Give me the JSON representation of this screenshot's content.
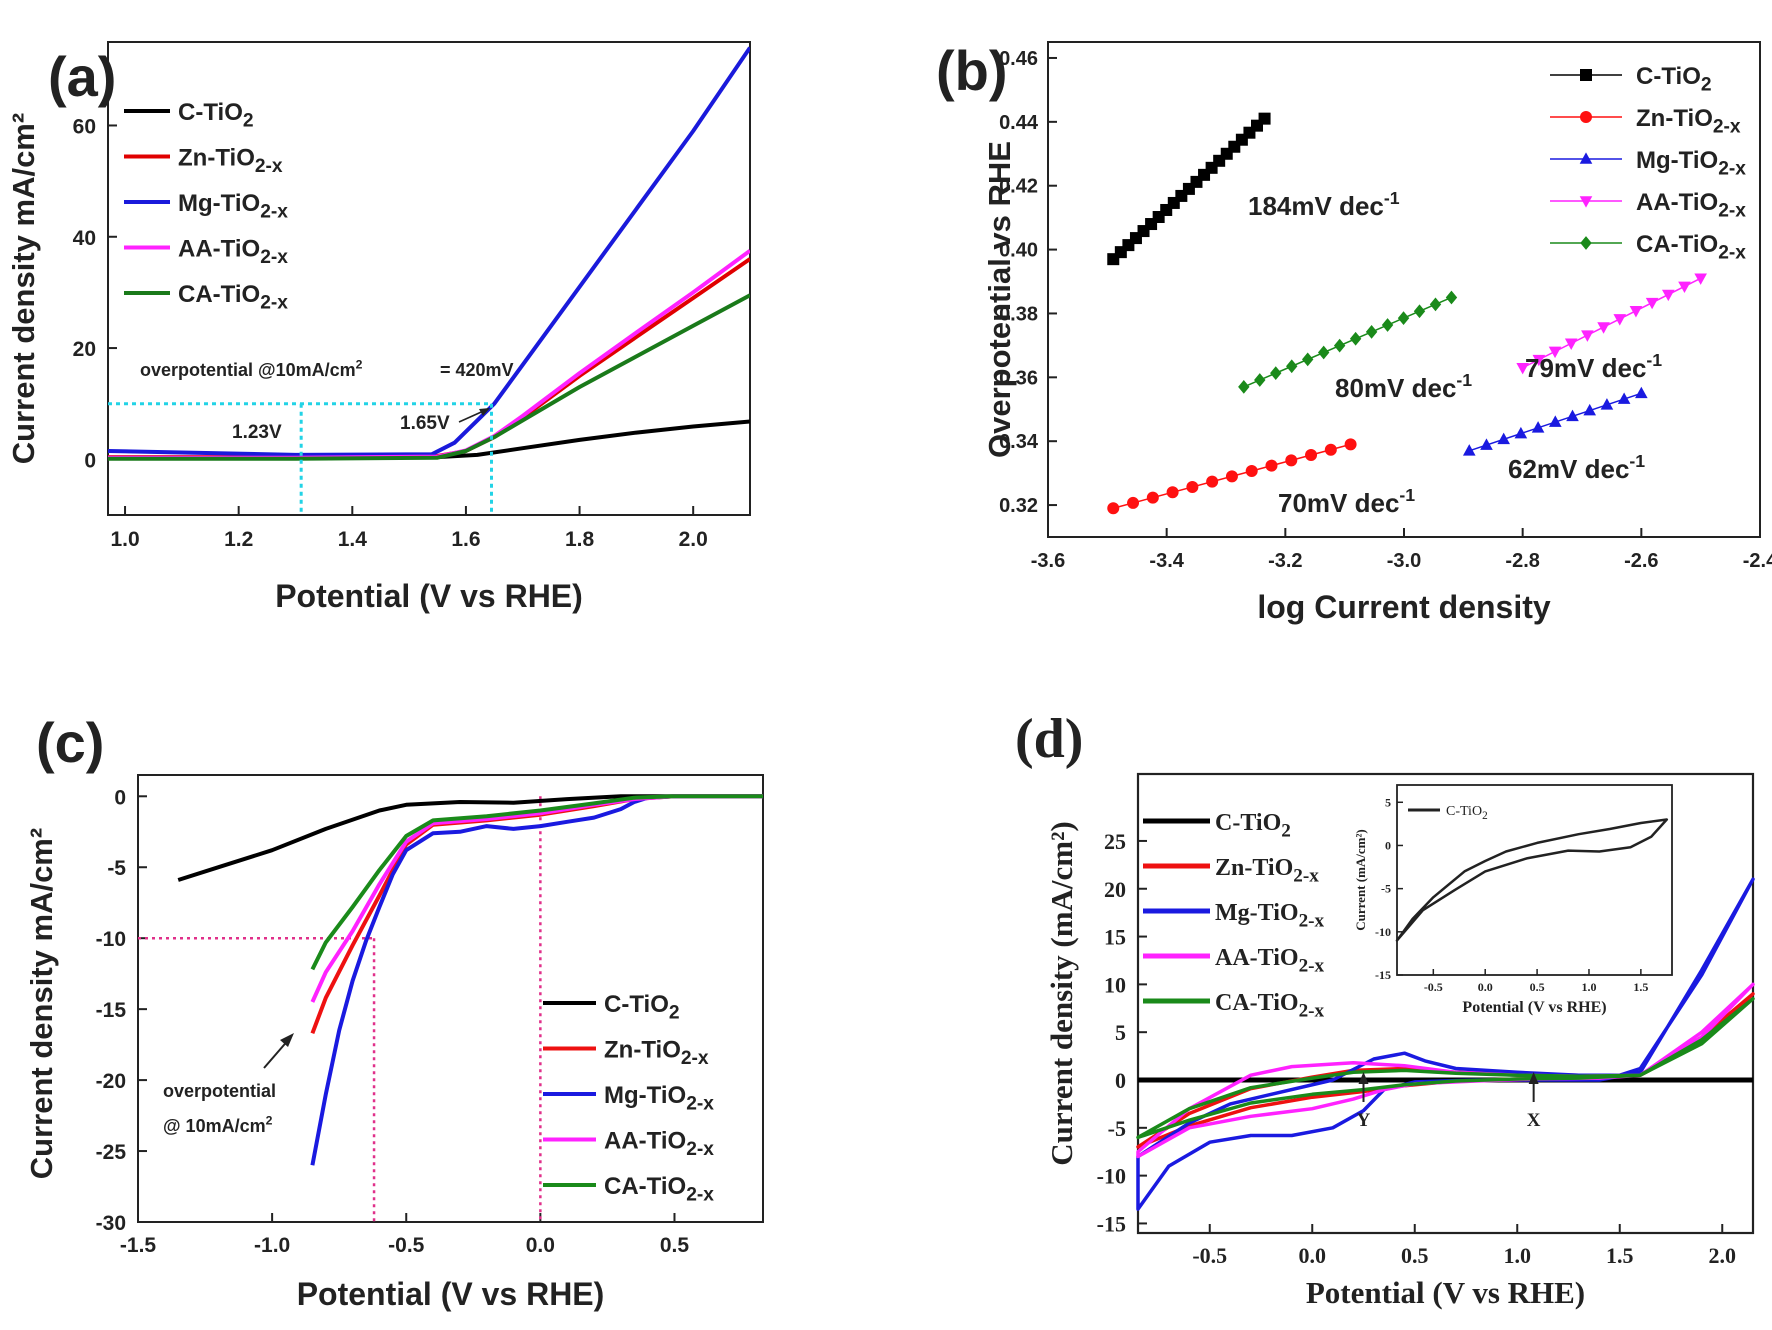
{
  "chart_data": [
    {
      "panel": "(a)",
      "type": "line",
      "xlabel": "Potential (V vs RHE)",
      "ylabel": "Current density mA/cm²",
      "xlim": [
        0.97,
        2.1
      ],
      "ylim": [
        -10,
        75
      ],
      "xticks": [
        "1.0",
        "1.2",
        "1.4",
        "1.6",
        "1.8",
        "2.0"
      ],
      "yticks": [
        "0",
        "20",
        "40",
        "60"
      ],
      "legend_position": "top-left",
      "series": [
        {
          "name": "C-TiO",
          "sub": "2",
          "color": "#000000",
          "x": [
            0.97,
            1.3,
            1.55,
            1.62,
            1.7,
            1.8,
            1.9,
            2.0,
            2.1
          ],
          "y": [
            0.2,
            0.3,
            0.4,
            0.8,
            2.0,
            3.5,
            4.8,
            5.9,
            6.8
          ]
        },
        {
          "name": "Zn-TiO",
          "sub": "2-x",
          "color": "#e00000",
          "x": [
            0.97,
            1.3,
            1.55,
            1.6,
            1.65,
            1.7,
            1.8,
            1.9,
            2.0,
            2.1
          ],
          "y": [
            0.4,
            0.4,
            0.6,
            1.5,
            4.0,
            7.5,
            15.0,
            22.0,
            29.0,
            36.0
          ]
        },
        {
          "name": "Mg-TiO",
          "sub": "2-x",
          "color": "#1a1adb",
          "x": [
            0.97,
            1.3,
            1.54,
            1.58,
            1.62,
            1.65,
            1.7,
            1.8,
            1.9,
            2.0,
            2.1
          ],
          "y": [
            1.5,
            0.8,
            0.9,
            3.0,
            7.0,
            10.0,
            17.0,
            31.0,
            45.0,
            59.0,
            74.0
          ]
        },
        {
          "name": "AA-TiO",
          "sub": "2-x",
          "color": "#ff22ff",
          "x": [
            0.97,
            1.3,
            1.55,
            1.6,
            1.65,
            1.7,
            1.8,
            1.9,
            2.0,
            2.1
          ],
          "y": [
            0.3,
            0.3,
            0.5,
            1.6,
            4.2,
            7.8,
            15.5,
            22.8,
            30.0,
            37.5
          ]
        },
        {
          "name": "CA-TiO",
          "sub": "2-x",
          "color": "#1a7a1a",
          "x": [
            0.97,
            1.3,
            1.55,
            1.6,
            1.65,
            1.7,
            1.8,
            1.9,
            2.0,
            2.1
          ],
          "y": [
            0.1,
            0.1,
            0.3,
            1.5,
            4.0,
            7.0,
            13.0,
            18.5,
            24.0,
            29.5
          ]
        }
      ],
      "annotations": {
        "overpotential": "overpotential @10mA/cm",
        "overpotential_sup": "2",
        "overpotential_value": "= 420mV",
        "v1": "1.23V",
        "v2": "1.65V",
        "ref_y": 10,
        "ref_x1": 1.31,
        "ref_x2": 1.645
      }
    },
    {
      "panel": "(b)",
      "type": "scatter",
      "xlabel": "log Current density",
      "ylabel": "Overpotential vs RHE",
      "xlim": [
        -3.6,
        -2.4
      ],
      "ylim": [
        0.31,
        0.465
      ],
      "xticks": [
        "-3.6",
        "-3.4",
        "-3.2",
        "-3.0",
        "-2.8",
        "-2.6",
        "-2.4"
      ],
      "yticks": [
        "0.32",
        "0.34",
        "0.36",
        "0.38",
        "0.40",
        "0.42",
        "0.44",
        "0.46"
      ],
      "legend_position": "top-right",
      "series": [
        {
          "name": "C-TiO",
          "sub": "2",
          "color": "#000000",
          "marker": "square",
          "x_start": -3.49,
          "x_end": -3.235,
          "y_start": 0.397,
          "y_end": 0.441,
          "count": 21,
          "label": "184mV dec",
          "label_sup": "-1"
        },
        {
          "name": "Zn-TiO",
          "sub": "2-x",
          "color": "#ff1111",
          "marker": "circle",
          "x_start": -3.49,
          "x_end": -3.09,
          "y_start": 0.319,
          "y_end": 0.339,
          "count": 13,
          "label": "70mV dec",
          "label_sup": "-1"
        },
        {
          "name": "Mg-TiO",
          "sub": "2-x",
          "color": "#1a1ae0",
          "marker": "triangle-up",
          "x_start": -2.89,
          "x_end": -2.6,
          "y_start": 0.337,
          "y_end": 0.355,
          "count": 11,
          "label": "62mV dec",
          "label_sup": "-1"
        },
        {
          "name": "AA-TiO",
          "sub": "2-x",
          "color": "#ff22ff",
          "marker": "triangle-down",
          "x_start": -2.8,
          "x_end": -2.5,
          "y_start": 0.363,
          "y_end": 0.391,
          "count": 12,
          "label": "79mV dec",
          "label_sup": "-1"
        },
        {
          "name": "CA-TiO",
          "sub": "2-x",
          "color": "#1a8a1a",
          "marker": "diamond",
          "x_start": -3.27,
          "x_end": -2.92,
          "y_start": 0.357,
          "y_end": 0.385,
          "count": 14,
          "label": "80mV dec",
          "label_sup": "-1"
        }
      ]
    },
    {
      "panel": "(c)",
      "type": "line",
      "xlabel": "Potential (V vs RHE)",
      "ylabel": "Current density mA/cm²",
      "xlim": [
        -1.5,
        0.83
      ],
      "ylim": [
        -30,
        1.5
      ],
      "xticks": [
        "-1.5",
        "-1.0",
        "-0.5",
        "0.0",
        "0.5"
      ],
      "yticks": [
        "0",
        "-5",
        "-10",
        "-15",
        "-20",
        "-25",
        "-30"
      ],
      "legend_position": "bottom-right",
      "series": [
        {
          "name": "C-TiO",
          "sub": "2",
          "color": "#000000",
          "x": [
            -1.35,
            -1.2,
            -1.0,
            -0.8,
            -0.6,
            -0.5,
            -0.4,
            -0.3,
            -0.1,
            0.1,
            0.3,
            0.5,
            0.83
          ],
          "y": [
            -5.9,
            -5.0,
            -3.8,
            -2.3,
            -1.0,
            -0.6,
            -0.5,
            -0.4,
            -0.45,
            -0.2,
            0,
            0,
            0
          ]
        },
        {
          "name": "Zn-TiO",
          "sub": "2-x",
          "color": "#ee1111",
          "x": [
            -0.85,
            -0.8,
            -0.7,
            -0.6,
            -0.5,
            -0.4,
            -0.2,
            0.0,
            0.2,
            0.35,
            0.5,
            0.83
          ],
          "y": [
            -16.7,
            -14.2,
            -10.5,
            -7.0,
            -3.4,
            -2.0,
            -1.7,
            -1.3,
            -0.7,
            -0.2,
            0,
            0
          ]
        },
        {
          "name": "Mg-TiO",
          "sub": "2-x",
          "color": "#1a1ae0",
          "x": [
            -0.85,
            -0.8,
            -0.75,
            -0.7,
            -0.65,
            -0.6,
            -0.55,
            -0.5,
            -0.4,
            -0.3,
            -0.2,
            -0.1,
            0.0,
            0.1,
            0.2,
            0.3,
            0.35,
            0.4,
            0.5,
            0.83
          ],
          "y": [
            -26.0,
            -21.0,
            -16.5,
            -13.0,
            -10.2,
            -7.8,
            -5.5,
            -3.8,
            -2.6,
            -2.5,
            -2.1,
            -2.3,
            -2.1,
            -1.8,
            -1.5,
            -0.9,
            -0.4,
            -0.1,
            0,
            0
          ]
        },
        {
          "name": "AA-TiO",
          "sub": "2-x",
          "color": "#ff22ff",
          "x": [
            -0.85,
            -0.8,
            -0.7,
            -0.6,
            -0.5,
            -0.4,
            -0.2,
            0.0,
            0.2,
            0.35,
            0.5,
            0.83
          ],
          "y": [
            -14.5,
            -12.4,
            -9.5,
            -6.2,
            -3.2,
            -1.9,
            -1.6,
            -1.2,
            -0.6,
            -0.2,
            0,
            0
          ]
        },
        {
          "name": "CA-TiO",
          "sub": "2-x",
          "color": "#1a8a1a",
          "x": [
            -0.85,
            -0.8,
            -0.7,
            -0.6,
            -0.5,
            -0.4,
            -0.2,
            0.0,
            0.2,
            0.35,
            0.5,
            0.83
          ],
          "y": [
            -12.2,
            -10.3,
            -7.8,
            -5.2,
            -2.8,
            -1.7,
            -1.4,
            -1.0,
            -0.5,
            -0.1,
            0,
            0
          ]
        }
      ],
      "annotations": {
        "overpotential": "overpotential",
        "at10": "@ 10mA/cm",
        "at10_sup": "2",
        "ref_y": -10,
        "ref_x1": -0.62,
        "ref_x2": 0.0
      }
    },
    {
      "panel": "(d)",
      "type": "line",
      "xlabel": "Potential (V vs RHE)",
      "ylabel": "Current density (mA/cm²)",
      "xlim": [
        -0.85,
        2.15
      ],
      "ylim": [
        -16,
        32
      ],
      "xticks": [
        "-0.5",
        "0.0",
        "0.5",
        "1.0",
        "1.5",
        "2.0"
      ],
      "yticks": [
        "25",
        "20",
        "15",
        "10",
        "5",
        "0",
        "-5",
        "-10",
        "-15"
      ],
      "legend_position": "top-left",
      "series": [
        {
          "name": "C-TiO",
          "sub": "2",
          "color": "#000000",
          "x": [
            -0.85,
            2.15
          ],
          "y": [
            0,
            0
          ]
        },
        {
          "name": "Zn-TiO",
          "sub": "2-x",
          "color": "#ee1111",
          "x": [
            -0.85,
            -0.6,
            -0.3,
            0.0,
            0.25,
            0.45,
            0.7,
            1.0,
            1.3,
            1.6,
            1.9,
            2.15,
            2.15,
            1.9,
            1.6,
            1.3,
            1.0,
            0.7,
            0.45,
            0.2,
            0.0,
            -0.3,
            -0.6,
            -0.85
          ],
          "y": [
            -7.0,
            -4.8,
            -2.9,
            -1.8,
            -1.2,
            -0.6,
            -0.1,
            0.1,
            0.2,
            0.5,
            4.5,
            9.0,
            9.0,
            4.0,
            0.5,
            0.5,
            0.6,
            0.8,
            1.2,
            1.0,
            0.3,
            -0.9,
            -3.5,
            -7.0
          ]
        },
        {
          "name": "Mg-TiO",
          "sub": "2-x",
          "color": "#1a1ae0",
          "x": [
            -0.85,
            -0.7,
            -0.5,
            -0.3,
            -0.1,
            0.1,
            0.25,
            0.35,
            0.5,
            0.8,
            1.1,
            1.4,
            1.6,
            1.9,
            2.15,
            2.15,
            1.9,
            1.6,
            1.5,
            1.3,
            1.0,
            0.7,
            0.55,
            0.45,
            0.3,
            0.1,
            -0.2,
            -0.4,
            -0.6,
            -0.85
          ],
          "y": [
            -13.5,
            -9.0,
            -6.5,
            -5.8,
            -5.8,
            -5.0,
            -3.2,
            -1.0,
            -0.2,
            0.0,
            0.0,
            0.0,
            0.8,
            11.5,
            21.0,
            21.0,
            11.0,
            1.2,
            0.5,
            0.5,
            0.8,
            1.2,
            2.0,
            2.8,
            2.2,
            0.0,
            -1.5,
            -2.5,
            -4.5,
            -8.0
          ]
        },
        {
          "name": "AA-TiO",
          "sub": "2-x",
          "color": "#ff22ff",
          "x": [
            -0.85,
            -0.6,
            -0.3,
            0.0,
            0.2,
            0.35,
            0.5,
            0.8,
            1.1,
            1.4,
            1.6,
            1.9,
            2.15,
            2.15,
            1.9,
            1.6,
            1.3,
            1.0,
            0.7,
            0.45,
            0.2,
            -0.1,
            -0.3,
            -0.6,
            -0.85
          ],
          "y": [
            -8.0,
            -5.0,
            -3.8,
            -3.0,
            -2.0,
            -1.0,
            -0.4,
            -0.1,
            0.1,
            0.2,
            0.5,
            5.0,
            10.0,
            10.0,
            4.5,
            0.5,
            0.4,
            0.5,
            0.8,
            1.5,
            1.8,
            1.4,
            0.5,
            -3.0,
            -7.5
          ]
        },
        {
          "name": "CA-TiO",
          "sub": "2-x",
          "color": "#1a8a1a",
          "x": [
            -0.85,
            -0.6,
            -0.3,
            0.0,
            0.25,
            0.45,
            0.7,
            1.0,
            1.3,
            1.6,
            1.9,
            2.15,
            2.15,
            1.9,
            1.6,
            1.3,
            1.0,
            0.7,
            0.45,
            0.2,
            0.0,
            -0.3,
            -0.6,
            -0.85
          ],
          "y": [
            -6.0,
            -4.2,
            -2.4,
            -1.5,
            -1.0,
            -0.5,
            -0.1,
            0.1,
            0.2,
            0.5,
            4.2,
            8.5,
            8.5,
            3.8,
            0.5,
            0.4,
            0.5,
            0.7,
            1.0,
            0.8,
            0.2,
            -0.8,
            -3.0,
            -6.0
          ]
        }
      ],
      "annotations": {
        "y_marker": "Y",
        "y_marker_x": 0.25,
        "x_marker": "X",
        "x_marker_x": 1.08
      },
      "inset": {
        "xlabel": "Potential (V vs RHE)",
        "ylabel": "Current (mA/cm²)",
        "xlim": [
          -0.85,
          1.8
        ],
        "ylim": [
          -15,
          7
        ],
        "xticks": [
          "-0.5",
          "0.0",
          "0.5",
          "1.0",
          "1.5"
        ],
        "yticks": [
          "5",
          "0",
          "-5",
          "-10",
          "-15"
        ],
        "legend": "C-TiO",
        "legend_sub": "2",
        "x": [
          -0.85,
          -0.6,
          -0.3,
          0.0,
          0.4,
          0.8,
          1.1,
          1.4,
          1.6,
          1.75,
          1.75,
          1.5,
          1.2,
          0.9,
          0.5,
          0.2,
          0.0,
          -0.2,
          -0.5,
          -0.7,
          -0.85
        ],
        "y": [
          -11.0,
          -7.5,
          -5.2,
          -3.0,
          -1.5,
          -0.6,
          -0.7,
          -0.2,
          1.0,
          3.0,
          3.0,
          2.6,
          1.9,
          1.3,
          0.3,
          -0.7,
          -1.8,
          -3.0,
          -6.0,
          -8.5,
          -11.0
        ]
      }
    }
  ]
}
